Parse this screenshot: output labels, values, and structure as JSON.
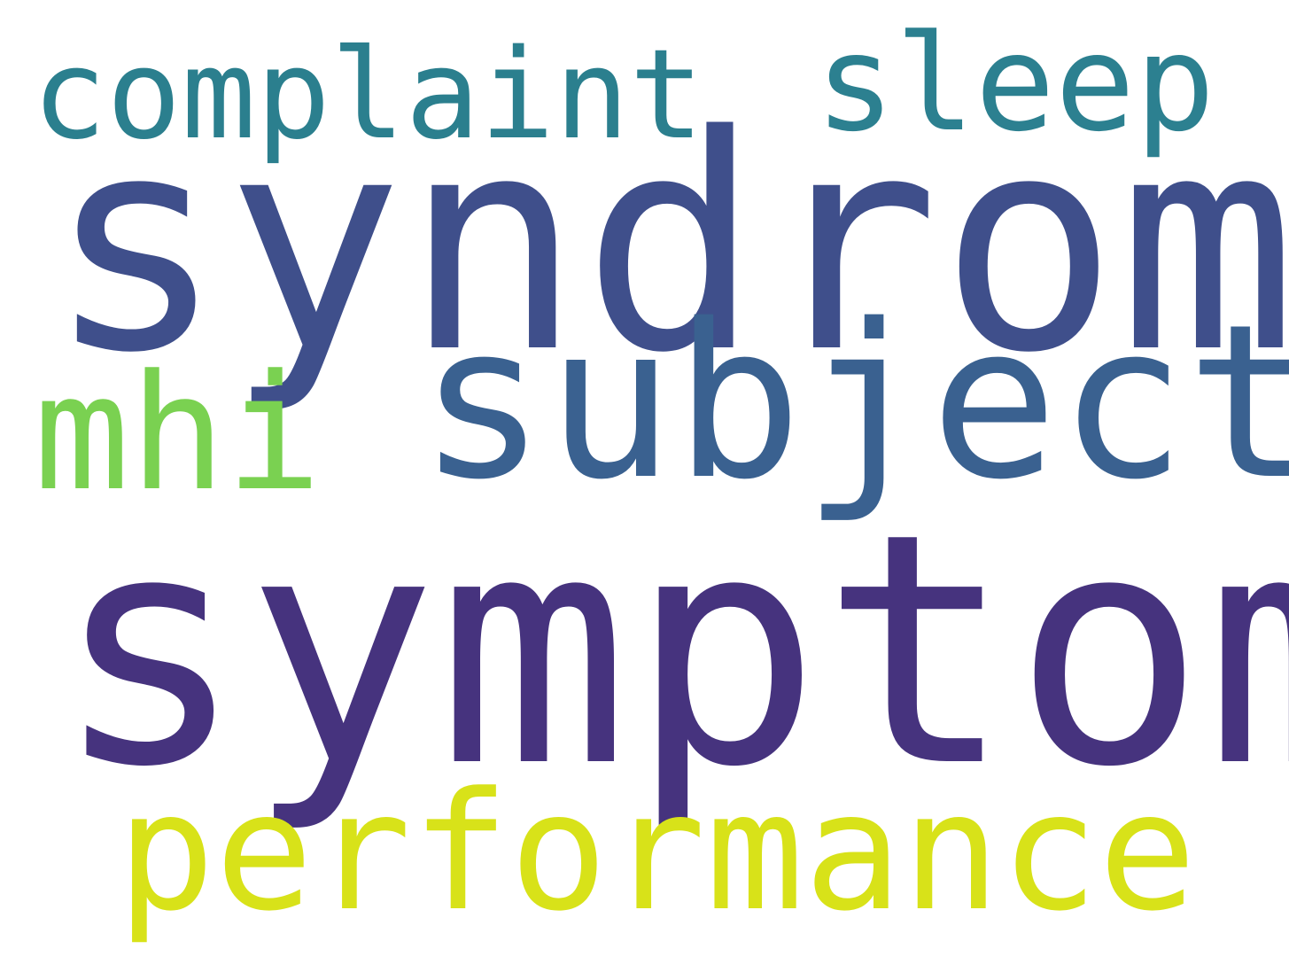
{
  "background_color": "#ffffff",
  "words": {
    "complaint": {
      "text": "complaint",
      "color": "#2b7f8e"
    },
    "sleep": {
      "text": "sleep",
      "color": "#2c8090"
    },
    "syndrome": {
      "text": "syndrome",
      "color": "#3f4f8b"
    },
    "subject": {
      "text": "subject",
      "color": "#3a6190"
    },
    "mhi": {
      "text": "mhi",
      "color": "#7ad151"
    },
    "symptom": {
      "text": "symptom",
      "color": "#46337e"
    },
    "performance": {
      "text": "performance",
      "color": "#d8e219"
    }
  }
}
